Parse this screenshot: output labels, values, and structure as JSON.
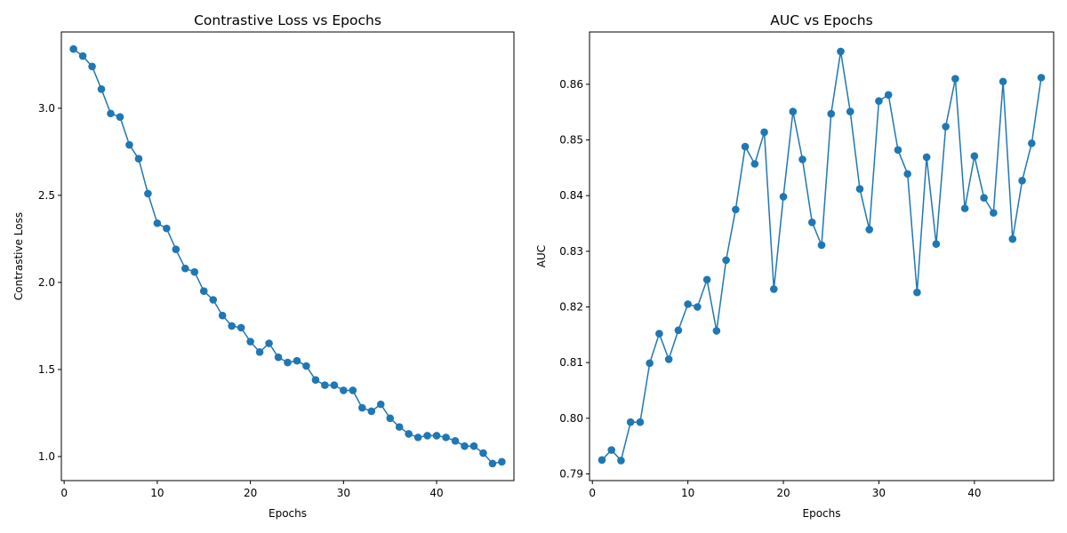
{
  "colors": {
    "series": "#1f77b4",
    "axis": "#000000",
    "background": "#ffffff"
  },
  "chart_data": [
    {
      "type": "line",
      "title": "Contrastive Loss vs Epochs",
      "xlabel": "Epochs",
      "ylabel": "Contrastive Loss",
      "xlim": [
        -0.3,
        48.3
      ],
      "ylim": [
        0.862,
        3.438
      ],
      "xticks": [
        0,
        10,
        20,
        30,
        40
      ],
      "yticks": [
        1.0,
        1.5,
        2.0,
        2.5,
        3.0
      ],
      "ytick_labels": [
        "1.0",
        "1.5",
        "2.0",
        "2.5",
        "3.0"
      ],
      "grid": false,
      "marker": "circle",
      "x": [
        1,
        2,
        3,
        4,
        5,
        6,
        7,
        8,
        9,
        10,
        11,
        12,
        13,
        14,
        15,
        16,
        17,
        18,
        19,
        20,
        21,
        22,
        23,
        24,
        25,
        26,
        27,
        28,
        29,
        30,
        31,
        32,
        33,
        34,
        35,
        36,
        37,
        38,
        39,
        40,
        41,
        42,
        43,
        44,
        45,
        46,
        47
      ],
      "y": [
        3.34,
        3.3,
        3.24,
        3.11,
        2.97,
        2.95,
        2.79,
        2.71,
        2.51,
        2.34,
        2.31,
        2.19,
        2.08,
        2.06,
        1.95,
        1.9,
        1.81,
        1.75,
        1.74,
        1.66,
        1.6,
        1.65,
        1.57,
        1.54,
        1.55,
        1.52,
        1.44,
        1.41,
        1.41,
        1.38,
        1.38,
        1.28,
        1.26,
        1.3,
        1.22,
        1.17,
        1.13,
        1.11,
        1.12,
        1.12,
        1.11,
        1.09,
        1.06,
        1.06,
        1.02,
        0.96,
        0.97
      ]
    },
    {
      "type": "line",
      "title": "AUC vs Epochs",
      "xlabel": "Epochs",
      "ylabel": "AUC",
      "xlim": [
        -0.3,
        48.3
      ],
      "ylim": [
        0.7888,
        0.8694
      ],
      "xticks": [
        0,
        10,
        20,
        30,
        40
      ],
      "yticks": [
        0.79,
        0.8,
        0.81,
        0.82,
        0.83,
        0.84,
        0.85,
        0.86
      ],
      "ytick_labels": [
        "0.79",
        "0.80",
        "0.81",
        "0.82",
        "0.83",
        "0.84",
        "0.85",
        "0.86"
      ],
      "grid": false,
      "marker": "circle",
      "x": [
        1,
        2,
        3,
        4,
        5,
        6,
        7,
        8,
        9,
        10,
        11,
        12,
        13,
        14,
        15,
        16,
        17,
        18,
        19,
        20,
        21,
        22,
        23,
        24,
        25,
        26,
        27,
        28,
        29,
        30,
        31,
        32,
        33,
        34,
        35,
        36,
        37,
        38,
        39,
        40,
        41,
        42,
        43,
        44,
        45,
        46,
        47
      ],
      "y": [
        0.7925,
        0.7943,
        0.7924,
        0.7993,
        0.7993,
        0.8099,
        0.8152,
        0.8106,
        0.8158,
        0.8205,
        0.82,
        0.8249,
        0.8157,
        0.8284,
        0.8375,
        0.8488,
        0.8457,
        0.8514,
        0.8232,
        0.8398,
        0.8551,
        0.8465,
        0.8352,
        0.8311,
        0.8547,
        0.8659,
        0.8551,
        0.8412,
        0.8339,
        0.857,
        0.8581,
        0.8482,
        0.8439,
        0.8226,
        0.8469,
        0.8313,
        0.8524,
        0.861,
        0.8377,
        0.8471,
        0.8396,
        0.8369,
        0.8605,
        0.8322,
        0.8427,
        0.8494,
        0.8612
      ]
    }
  ]
}
